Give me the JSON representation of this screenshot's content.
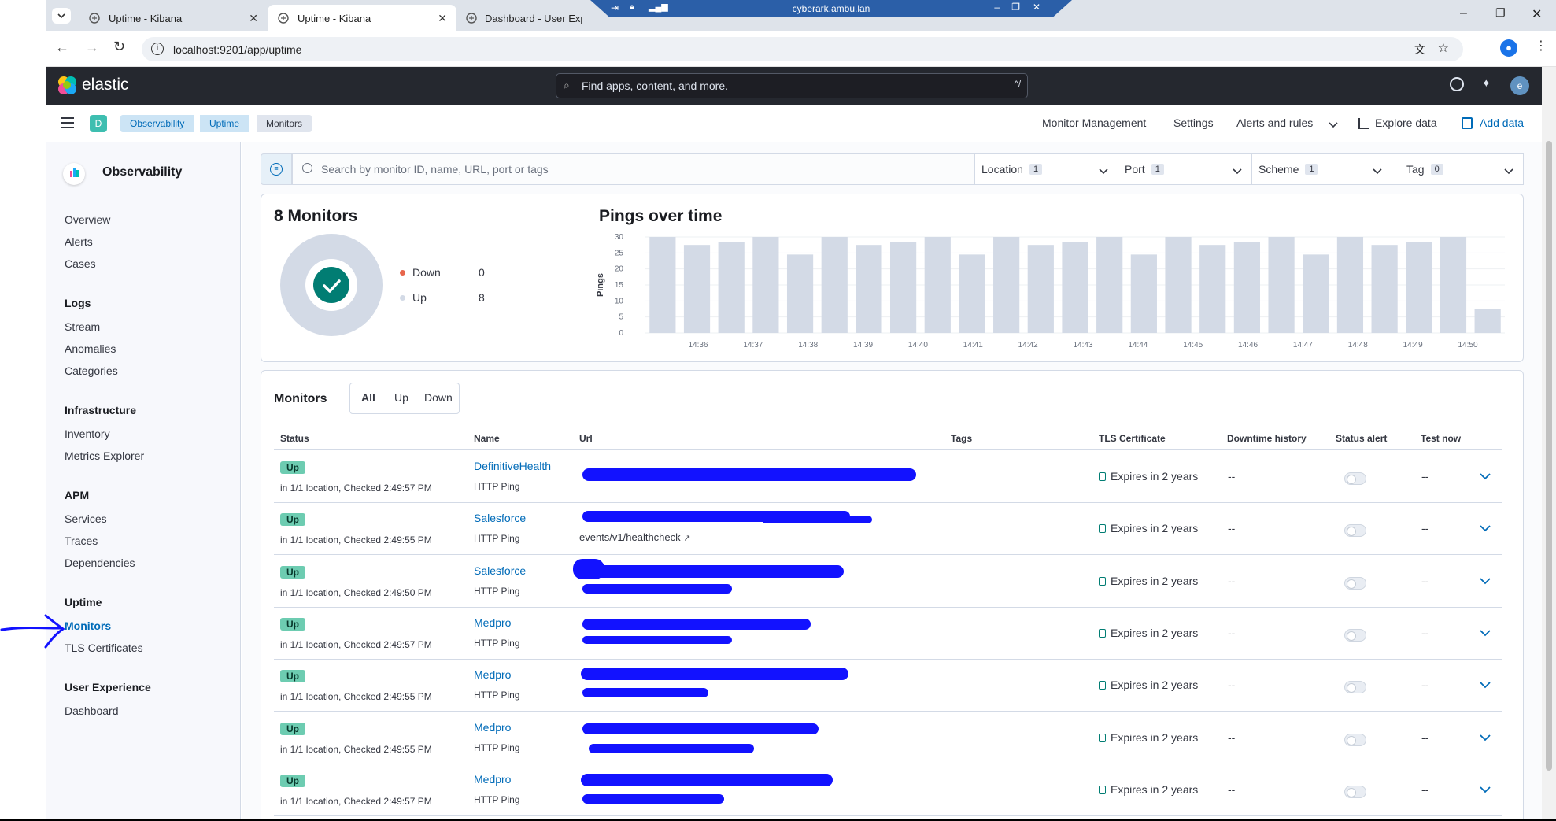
{
  "browser": {
    "tabs": [
      {
        "title": "Uptime - Kibana"
      },
      {
        "title": "Uptime - Kibana"
      },
      {
        "title": "Dashboard - User Experience"
      }
    ],
    "remote_title": "cyberark.ambu.lan",
    "url": "localhost:9201/app/uptime"
  },
  "header": {
    "logo_text": "elastic",
    "search_placeholder": "Find apps, content, and more.",
    "search_shortcut": "^/",
    "avatar_letter": "e",
    "space_letter": "D",
    "breadcrumbs": [
      "Observability",
      "Uptime",
      "Monitors"
    ],
    "links": [
      "Monitor Management",
      "Settings",
      "Alerts and rules",
      "Explore data",
      "Add data"
    ]
  },
  "sidebar": {
    "title": "Observability",
    "top_items": [
      "Overview",
      "Alerts",
      "Cases"
    ],
    "groups": [
      {
        "title": "Logs",
        "items": [
          "Stream",
          "Anomalies",
          "Categories"
        ]
      },
      {
        "title": "Infrastructure",
        "items": [
          "Inventory",
          "Metrics Explorer"
        ]
      },
      {
        "title": "APM",
        "items": [
          "Services",
          "Traces",
          "Dependencies"
        ]
      },
      {
        "title": "Uptime",
        "items": [
          "Monitors",
          "TLS Certificates"
        ]
      },
      {
        "title": "User Experience",
        "items": [
          "Dashboard"
        ]
      }
    ],
    "active_item": "Monitors"
  },
  "filters": {
    "search_placeholder": "Search by monitor ID, name, URL, port or tags",
    "groups": [
      {
        "label": "Location",
        "count": "1"
      },
      {
        "label": "Port",
        "count": "1"
      },
      {
        "label": "Scheme",
        "count": "1"
      },
      {
        "label": "Tag",
        "count": "0"
      }
    ]
  },
  "summary": {
    "title": "8 Monitors",
    "down_label": "Down",
    "down_count": "0",
    "up_label": "Up",
    "up_count": "8",
    "colors": {
      "down": "#e7664c",
      "up": "#d3dae6",
      "check": "#017d73"
    }
  },
  "chart_data": {
    "type": "bar",
    "title": "Pings over time",
    "ylabel": "Pings",
    "xlabel": "",
    "ylim": [
      0,
      30
    ],
    "yticks": [
      0,
      5,
      10,
      15,
      20,
      25,
      30
    ],
    "xticks": [
      "14:36",
      "14:37",
      "14:38",
      "14:39",
      "14:40",
      "14:41",
      "14:42",
      "14:43",
      "14:44",
      "14:45",
      "14:46",
      "14:47",
      "14:48",
      "14:49",
      "14:50"
    ],
    "values": [
      30,
      27.5,
      28.5,
      30,
      24.5,
      30,
      27.5,
      28.5,
      30,
      24.5,
      30,
      27.5,
      28.5,
      30,
      24.5,
      30,
      27.5,
      28.5,
      30,
      24.5,
      30,
      27.5,
      28.5,
      30,
      7.5
    ],
    "bar_color": "#d3dae6",
    "grid": true
  },
  "monitors": {
    "title": "Monitors",
    "filter_buttons": [
      "All",
      "Up",
      "Down"
    ],
    "columns": [
      "Status",
      "Name",
      "Url",
      "Tags",
      "TLS Certificate",
      "Downtime history",
      "Status alert",
      "Test now"
    ],
    "rows": [
      {
        "status": "Up",
        "checked": "in 1/1 location, Checked 2:49:57 PM",
        "name": "DefinitiveHealth",
        "type": "HTTP Ping",
        "url_line2": "",
        "tls": "Expires in 2 years",
        "downtime": "--",
        "test_now": "--"
      },
      {
        "status": "Up",
        "checked": "in 1/1 location, Checked 2:49:55 PM",
        "name": "Salesforce",
        "type": "HTTP Ping",
        "url_line2": "events/v1/healthcheck",
        "tls": "Expires in 2 years",
        "downtime": "--",
        "test_now": "--"
      },
      {
        "status": "Up",
        "checked": "in 1/1 location, Checked 2:49:50 PM",
        "name": "Salesforce",
        "type": "HTTP Ping",
        "url_line2": "",
        "tls": "Expires in 2 years",
        "downtime": "--",
        "test_now": "--"
      },
      {
        "status": "Up",
        "checked": "in 1/1 location, Checked 2:49:57 PM",
        "name": "Medpro",
        "type": "HTTP Ping",
        "url_line2": "",
        "tls": "Expires in 2 years",
        "downtime": "--",
        "test_now": "--"
      },
      {
        "status": "Up",
        "checked": "in 1/1 location, Checked 2:49:55 PM",
        "name": "Medpro",
        "type": "HTTP Ping",
        "url_line2": "",
        "tls": "Expires in 2 years",
        "downtime": "--",
        "test_now": "--"
      },
      {
        "status": "Up",
        "checked": "in 1/1 location, Checked 2:49:55 PM",
        "name": "Medpro",
        "type": "HTTP Ping",
        "url_line2": "",
        "tls": "Expires in 2 years",
        "downtime": "--",
        "test_now": "--"
      },
      {
        "status": "Up",
        "checked": "in 1/1 location, Checked 2:49:57 PM",
        "name": "Medpro",
        "type": "HTTP Ping",
        "url_line2": "",
        "tls": "Expires in 2 years",
        "downtime": "--",
        "test_now": "--"
      }
    ]
  }
}
